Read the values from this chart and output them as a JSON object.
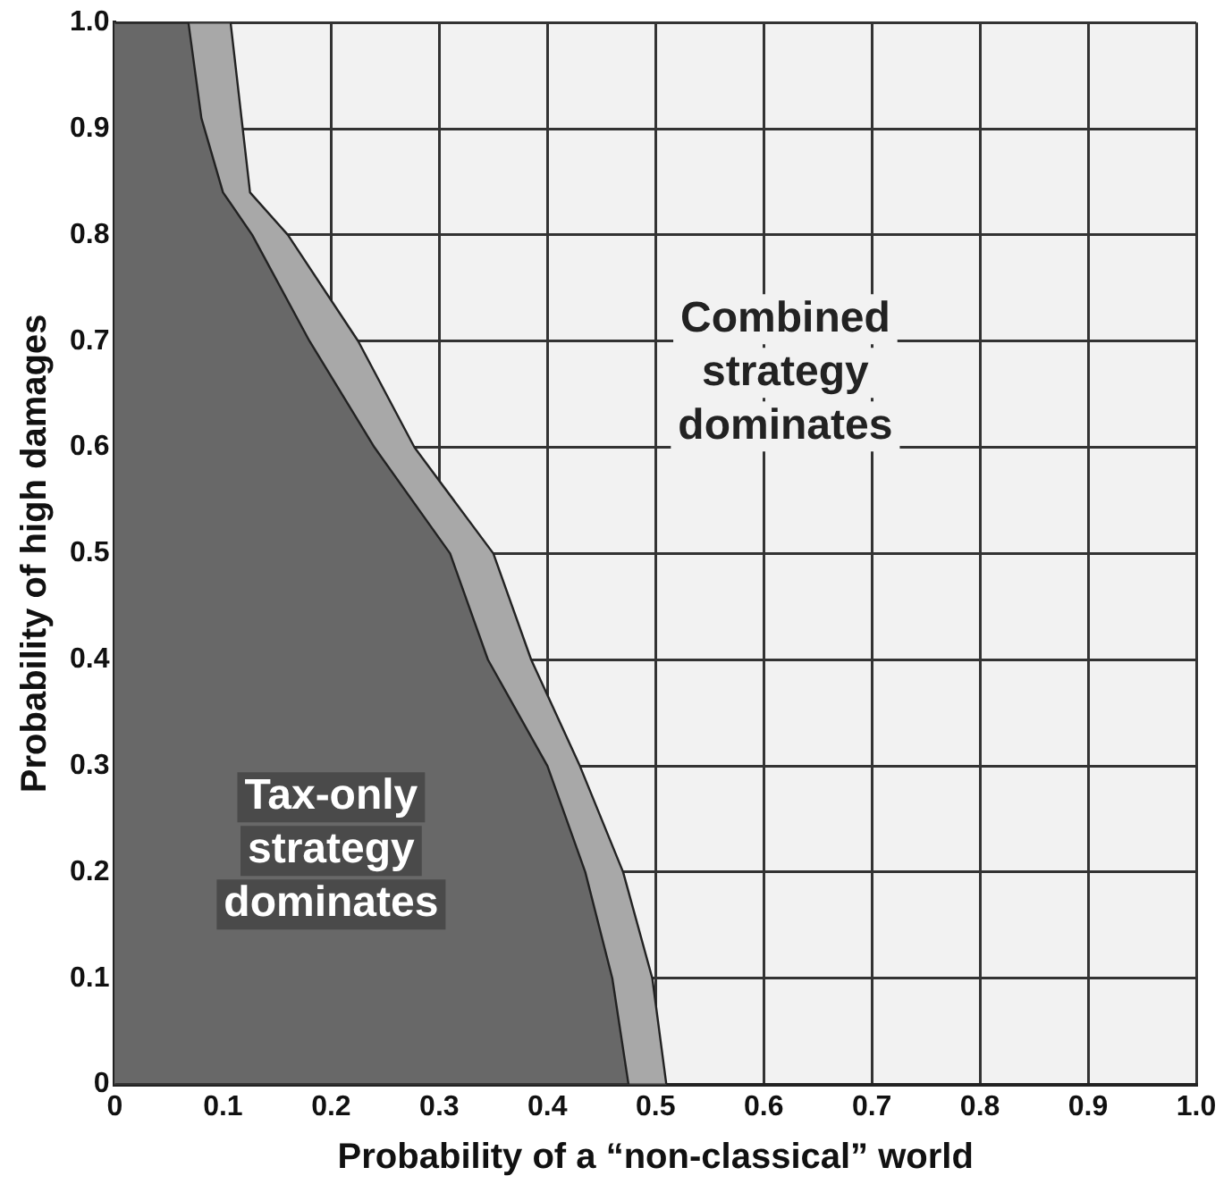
{
  "chart_data": {
    "type": "area",
    "xlabel": "Probability of a “non-classical” world",
    "ylabel": "Probability of high damages",
    "xlim": [
      0,
      1
    ],
    "ylim": [
      0,
      1
    ],
    "xticks": [
      0,
      0.1,
      0.2,
      0.3,
      0.4,
      0.5,
      0.6,
      0.7,
      0.8,
      0.9,
      {
        "value": 1,
        "label": "1.0"
      }
    ],
    "yticks": [
      0,
      0.1,
      0.2,
      0.3,
      0.4,
      0.5,
      0.6,
      0.7,
      0.8,
      0.9,
      {
        "value": 1,
        "label": "1.0"
      }
    ],
    "grid": true,
    "legend": false,
    "series": [
      {
        "color": "#a8a8a8",
        "x": [
          0,
          0.51,
          0.497,
          0.47,
          0.43,
          0.385,
          0.35,
          0.277,
          0.225,
          0.16,
          0.125,
          0.107,
          0
        ],
        "values": [
          0,
          0,
          0.1,
          0.2,
          0.3,
          0.4,
          0.5,
          0.6,
          0.7,
          0.8,
          0.84,
          1,
          1
        ]
      },
      {
        "color": "#686868",
        "x": [
          0,
          0.475,
          0.46,
          0.435,
          0.4,
          0.345,
          0.31,
          0.24,
          0.18,
          0.127,
          0.1,
          0.08,
          0.068,
          0
        ],
        "values": [
          0,
          0,
          0.1,
          0.2,
          0.3,
          0.4,
          0.5,
          0.6,
          0.7,
          0.8,
          0.84,
          0.91,
          1,
          1
        ]
      }
    ],
    "annotations": [
      "Combined strategy dominates",
      "Tax-only strategy dominates"
    ]
  }
}
